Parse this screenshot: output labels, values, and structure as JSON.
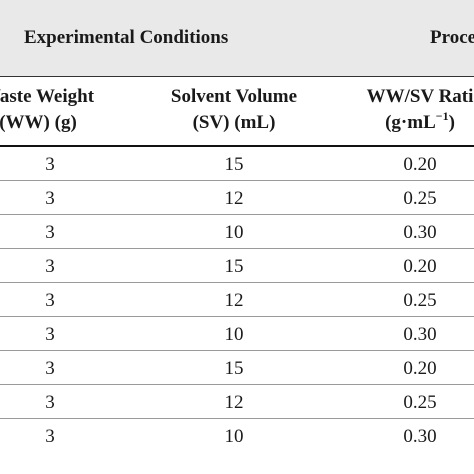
{
  "table": {
    "group_headers": [
      "Experimental Conditions",
      "Proce"
    ],
    "column_headers": [
      {
        "line1": "Waste Weight",
        "line2": "(WW) (g)"
      },
      {
        "line1": "Solvent Volume",
        "line2": "(SV) (mL)"
      },
      {
        "line1": "WW/SV Rati",
        "line2_prefix": "(g·mL",
        "line2_sup": "−1",
        "line2_suffix": ")"
      }
    ],
    "rows": [
      [
        "3",
        "15",
        "0.20"
      ],
      [
        "3",
        "12",
        "0.25"
      ],
      [
        "3",
        "10",
        "0.30"
      ],
      [
        "3",
        "15",
        "0.20"
      ],
      [
        "3",
        "12",
        "0.25"
      ],
      [
        "3",
        "10",
        "0.30"
      ],
      [
        "3",
        "15",
        "0.20"
      ],
      [
        "3",
        "12",
        "0.25"
      ],
      [
        "3",
        "10",
        "0.30"
      ]
    ]
  }
}
